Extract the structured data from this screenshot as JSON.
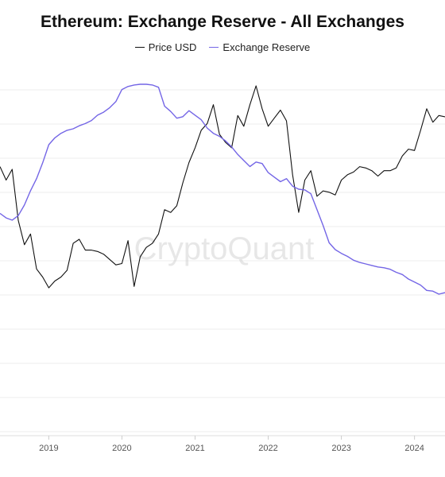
{
  "chart_data": {
    "type": "line",
    "title": "Ethereum: Exchange Reserve - All Exchanges",
    "watermark": "CryptoQuant",
    "x_ticks": [
      "2019",
      "2020",
      "2021",
      "2022",
      "2023",
      "2024"
    ],
    "xlim": [
      "2018-05",
      "2024-06"
    ],
    "grid": true,
    "legend_position": "top-center",
    "series": [
      {
        "name": "Price USD",
        "color": "#111111",
        "axis": "price",
        "x": [
          "2018-05",
          "2018-06",
          "2018-07",
          "2018-08",
          "2018-09",
          "2018-10",
          "2018-11",
          "2018-12",
          "2019-01",
          "2019-02",
          "2019-03",
          "2019-04",
          "2019-05",
          "2019-06",
          "2019-07",
          "2019-08",
          "2019-09",
          "2019-10",
          "2019-11",
          "2019-12",
          "2020-01",
          "2020-02",
          "2020-03",
          "2020-04",
          "2020-05",
          "2020-06",
          "2020-07",
          "2020-08",
          "2020-09",
          "2020-10",
          "2020-11",
          "2020-12",
          "2021-01",
          "2021-02",
          "2021-03",
          "2021-04",
          "2021-05",
          "2021-06",
          "2021-07",
          "2021-08",
          "2021-09",
          "2021-10",
          "2021-11",
          "2021-12",
          "2022-01",
          "2022-02",
          "2022-03",
          "2022-04",
          "2022-05",
          "2022-06",
          "2022-07",
          "2022-08",
          "2022-09",
          "2022-10",
          "2022-11",
          "2022-12",
          "2023-01",
          "2023-02",
          "2023-03",
          "2023-04",
          "2023-05",
          "2023-06",
          "2023-07",
          "2023-08",
          "2023-09",
          "2023-10",
          "2023-11",
          "2023-12",
          "2024-01",
          "2024-02",
          "2024-03",
          "2024-04",
          "2024-05",
          "2024-06"
        ],
        "values": [
          248,
          238,
          246,
          208,
          190,
          198,
          172,
          166,
          158,
          163,
          166,
          171,
          191,
          194,
          186,
          186,
          185,
          183,
          179,
          175,
          176,
          193,
          159,
          181,
          188,
          191,
          198,
          216,
          214,
          219,
          236,
          251,
          262,
          275,
          280,
          294,
          272,
          266,
          262,
          286,
          278,
          294,
          308,
          291,
          278,
          284,
          290,
          282,
          242,
          214,
          238,
          245,
          226,
          230,
          229,
          227,
          238,
          242,
          244,
          248,
          247,
          245,
          241,
          245,
          245,
          247,
          256,
          261,
          260,
          275,
          291,
          281,
          286,
          285
        ]
      },
      {
        "name": "Exchange Reserve",
        "color": "#7466e6",
        "axis": "reserve",
        "x": [
          "2018-05",
          "2018-06",
          "2018-07",
          "2018-08",
          "2018-09",
          "2018-10",
          "2018-11",
          "2018-12",
          "2019-01",
          "2019-02",
          "2019-03",
          "2019-04",
          "2019-05",
          "2019-06",
          "2019-07",
          "2019-08",
          "2019-09",
          "2019-10",
          "2019-11",
          "2019-12",
          "2020-01",
          "2020-02",
          "2020-03",
          "2020-04",
          "2020-05",
          "2020-06",
          "2020-07",
          "2020-08",
          "2020-09",
          "2020-10",
          "2020-11",
          "2020-12",
          "2021-01",
          "2021-02",
          "2021-03",
          "2021-04",
          "2021-05",
          "2021-06",
          "2021-07",
          "2021-08",
          "2021-09",
          "2021-10",
          "2021-11",
          "2021-12",
          "2022-01",
          "2022-02",
          "2022-03",
          "2022-04",
          "2022-05",
          "2022-06",
          "2022-07",
          "2022-08",
          "2022-09",
          "2022-10",
          "2022-11",
          "2022-12",
          "2023-01",
          "2023-02",
          "2023-03",
          "2023-04",
          "2023-05",
          "2023-06",
          "2023-07",
          "2023-08",
          "2023-09",
          "2023-10",
          "2023-11",
          "2023-12",
          "2024-01",
          "2024-02",
          "2024-03",
          "2024-04",
          "2024-05",
          "2024-06"
        ],
        "values": [
          166,
          160,
          157,
          163,
          177,
          196,
          212,
          233,
          257,
          266,
          272,
          276,
          278,
          282,
          285,
          289,
          296,
          300,
          306,
          314,
          330,
          334,
          336,
          337,
          337,
          336,
          333,
          308,
          301,
          292,
          294,
          302,
          296,
          290,
          279,
          272,
          268,
          262,
          254,
          244,
          236,
          228,
          234,
          232,
          220,
          214,
          208,
          212,
          202,
          198,
          197,
          192,
          171,
          150,
          127,
          118,
          113,
          109,
          104,
          101,
          99,
          97,
          95,
          94,
          92,
          88,
          85,
          79,
          75,
          71,
          64,
          63,
          59,
          61
        ]
      }
    ]
  }
}
